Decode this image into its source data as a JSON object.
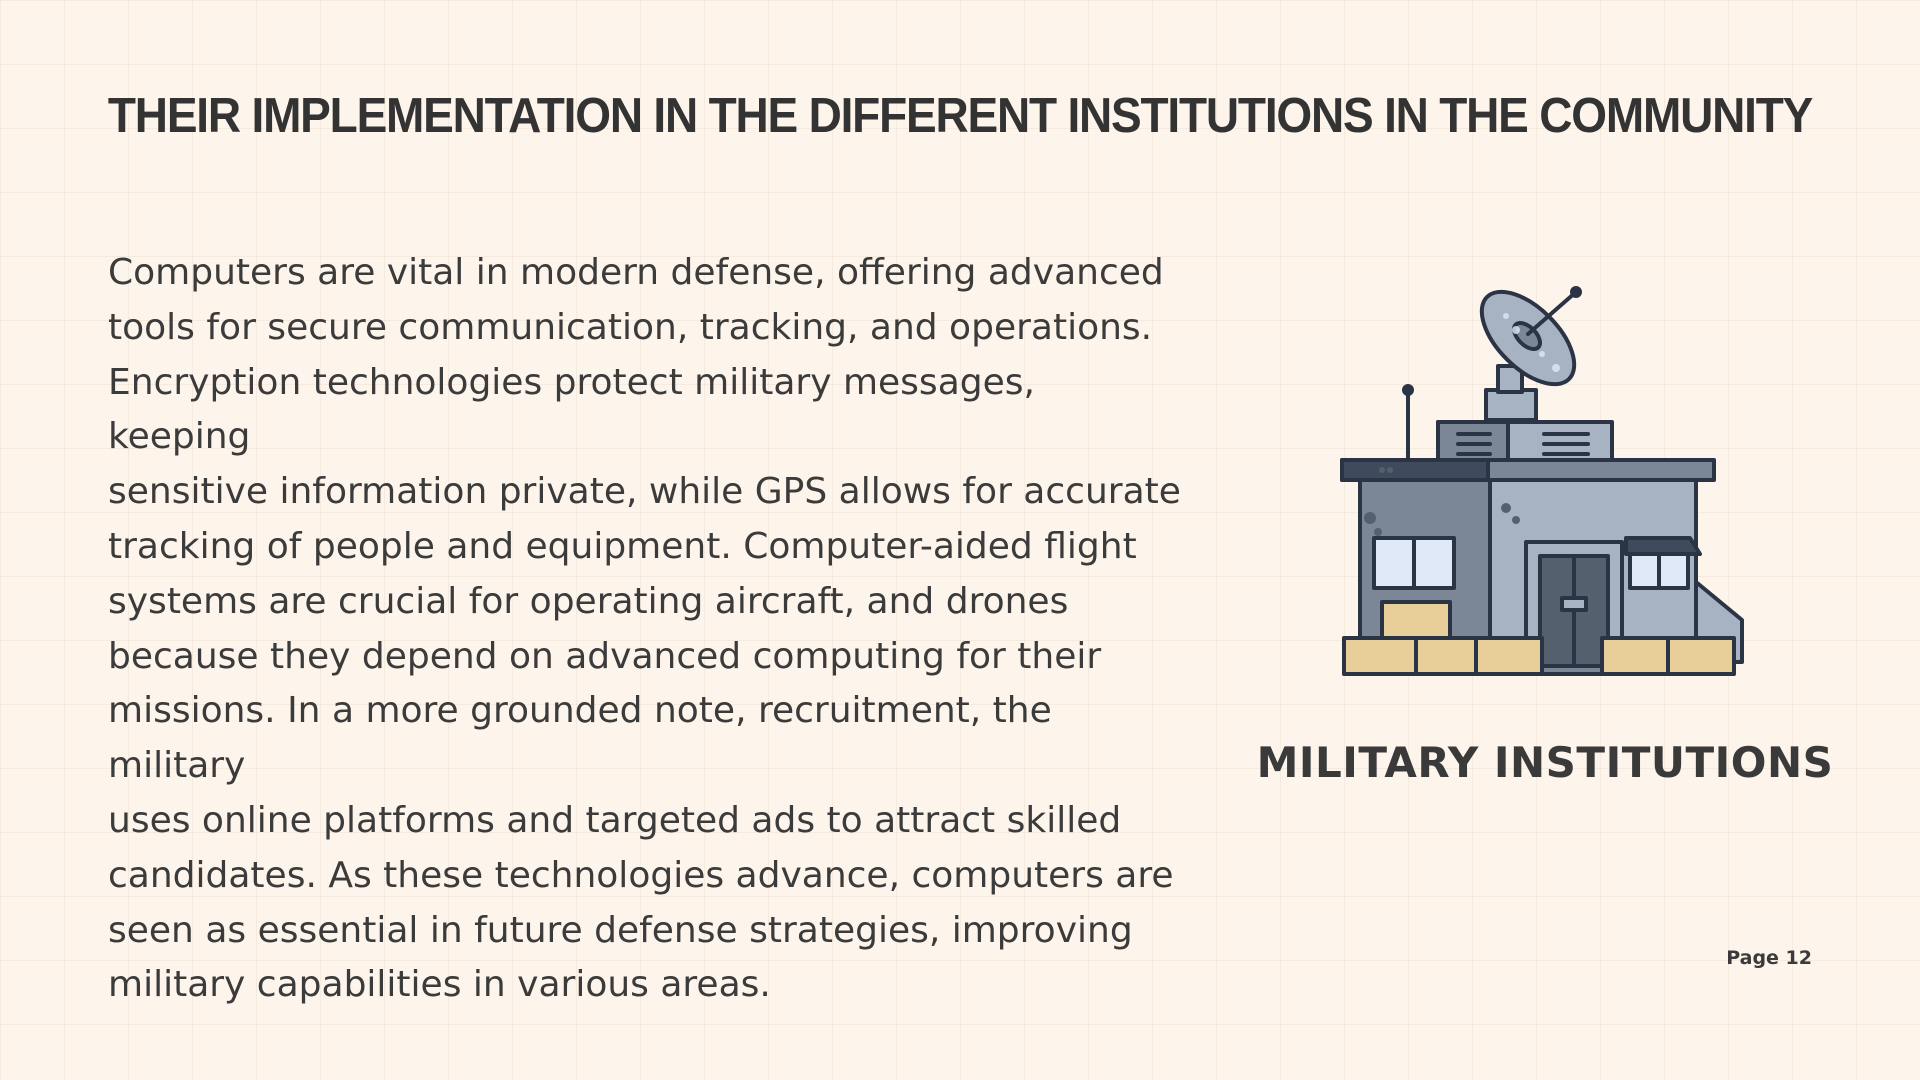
{
  "slide": {
    "title": "THEIR IMPLEMENTATION IN THE DIFFERENT INSTITUTIONS IN THE COMMUNITY",
    "body": "Computers are vital in modern defense, offering advanced\ntools for secure communication, tracking, and operations.\nEncryption technologies protect military messages, keeping\nsensitive information private, while GPS allows for accurate\ntracking of people and equipment. Computer-aided flight\nsystems are crucial for operating aircraft, and drones\nbecause they depend on advanced computing for their\nmissions. In a more grounded note, recruitment, the military\nuses online platforms and targeted ads to attract skilled\ncandidates. As these technologies advance, computers are\nseen as essential in future defense strategies, improving\nmilitary capabilities in various areas.",
    "institution_label": "MILITARY INSTITUTIONS",
    "page_label": "Page 12",
    "illustration_icon": "military-building-with-satellite-dish-icon"
  },
  "colors": {
    "background": "#fdf4eb",
    "text": "#3a3a3a",
    "building_gray": "#a7b3c3",
    "outline": "#2b3444",
    "sandbag": "#e8cf9a"
  }
}
